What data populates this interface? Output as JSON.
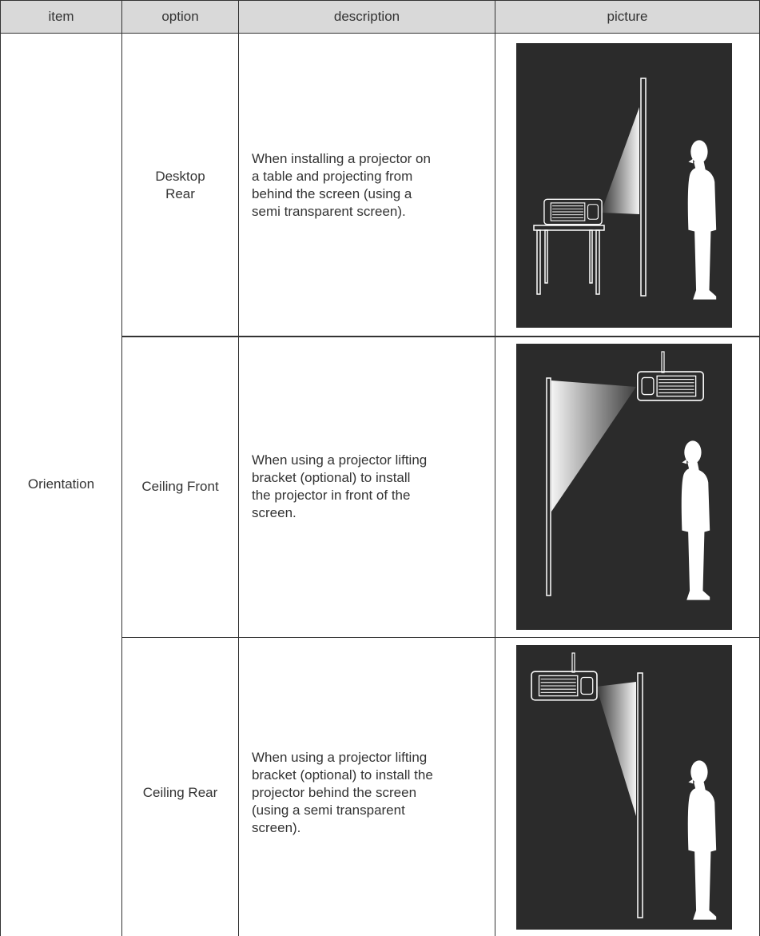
{
  "header": [
    "item",
    "option",
    "description",
    "picture"
  ],
  "table": {
    "item": "Orientation",
    "rows": [
      {
        "option": [
          "Desktop",
          "Rear"
        ],
        "description": [
          "When installing a projector on",
          "a table and projecting from",
          "behind the screen (using a",
          "semi transparent screen)."
        ]
      },
      {
        "option": [
          "Ceiling Front"
        ],
        "description": [
          "When using a projector lifting",
          "bracket (optional) to install",
          "the projector in front of the",
          "screen."
        ]
      },
      {
        "option": [
          "Ceiling Rear"
        ],
        "description": [
          "When using a projector lifting",
          "bracket (optional) to install the",
          "projector behind the screen",
          "(using a semi transparent",
          "screen)."
        ]
      }
    ]
  }
}
